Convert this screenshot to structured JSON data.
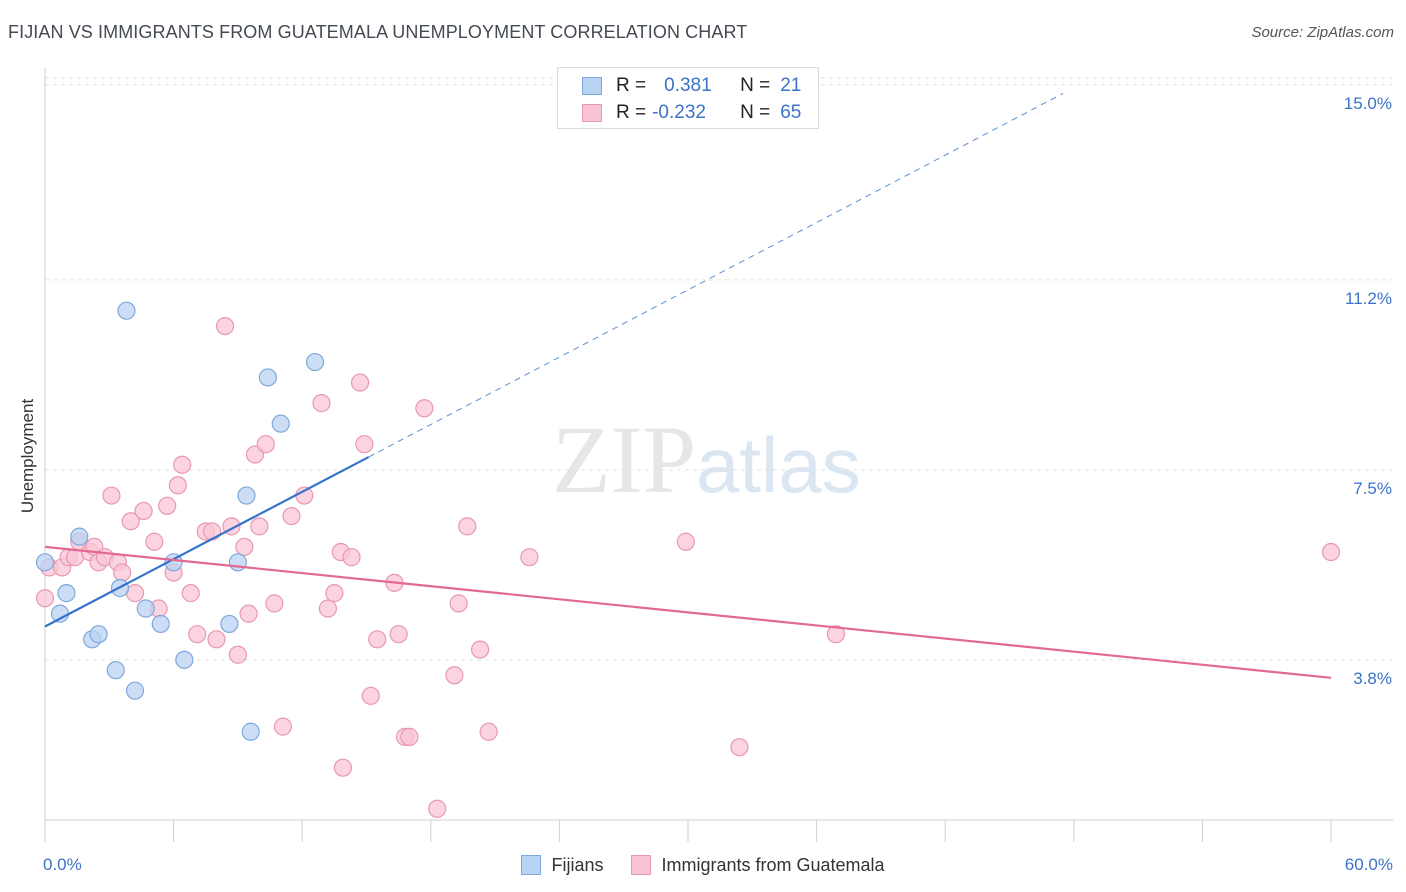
{
  "title": "FIJIAN VS IMMIGRANTS FROM GUATEMALA UNEMPLOYMENT CORRELATION CHART",
  "source": "Source: ZipAtlas.com",
  "watermark": {
    "zip": "ZIP",
    "atlas": "atlas"
  },
  "legend": {
    "rows": [
      {
        "r_label": "R =",
        "r_value": "0.381",
        "n_label": "N =",
        "n_value": "21"
      },
      {
        "r_label": "R =",
        "r_value": "-0.232",
        "n_label": "N =",
        "n_value": "65"
      }
    ]
  },
  "bottom_legend": [
    "Fijians",
    "Immigrants from Guatemala"
  ],
  "colors": {
    "fijians_fill": "#b9d3f3",
    "fijians_stroke": "#7fa8dd",
    "fijians_line": "#3572cc",
    "guatemala_fill": "#f9c5d5",
    "guatemala_stroke": "#e898b2",
    "guatemala_line": "#e26a92",
    "axis_label": "#3b73c8",
    "grid": "#e2e2e2"
  },
  "chart_data": {
    "type": "scatter",
    "title": "FIJIAN VS IMMIGRANTS FROM GUATEMALA UNEMPLOYMENT CORRELATION CHART",
    "xlabel": "",
    "ylabel": "Unemployment",
    "xlim": [
      0,
      60
    ],
    "ylim": [
      0,
      16
    ],
    "x_tick_labels": [
      "0.0%",
      "60.0%"
    ],
    "y_ticks": [
      3.8,
      7.5,
      11.2,
      15.0
    ],
    "y_tick_labels": [
      "3.8%",
      "7.5%",
      "11.2%",
      "15.0%"
    ],
    "grid": "horizontal dashed",
    "legend_position": "top-center",
    "series": [
      {
        "name": "Fijians",
        "r": 0.381,
        "n": 21,
        "trend": {
          "x0": 0,
          "y0": 4.45,
          "x1": 15.1,
          "y1": 7.75,
          "dash_to_x": 47.5
        },
        "points": [
          [
            0.0,
            5.7
          ],
          [
            1.0,
            5.1
          ],
          [
            0.7,
            4.7
          ],
          [
            1.6,
            6.2
          ],
          [
            2.2,
            4.2
          ],
          [
            2.5,
            4.3
          ],
          [
            3.3,
            3.6
          ],
          [
            3.5,
            5.2
          ],
          [
            3.8,
            10.6
          ],
          [
            4.2,
            3.2
          ],
          [
            4.7,
            4.8
          ],
          [
            5.4,
            4.5
          ],
          [
            6.0,
            5.7
          ],
          [
            6.5,
            3.8
          ],
          [
            8.6,
            4.5
          ],
          [
            9.0,
            5.7
          ],
          [
            9.4,
            7.0
          ],
          [
            9.6,
            2.4
          ],
          [
            10.4,
            9.3
          ],
          [
            11.0,
            8.4
          ],
          [
            12.6,
            9.6
          ]
        ]
      },
      {
        "name": "Immigrants from Guatemala",
        "r": -0.232,
        "n": 65,
        "trend": {
          "x0": 0,
          "y0": 6.0,
          "x1": 60,
          "y1": 3.45
        },
        "points": [
          [
            0.2,
            5.6
          ],
          [
            0.8,
            5.6
          ],
          [
            1.1,
            5.8
          ],
          [
            1.4,
            5.8
          ],
          [
            1.6,
            6.1
          ],
          [
            2.1,
            5.9
          ],
          [
            2.3,
            6.0
          ],
          [
            2.5,
            5.7
          ],
          [
            2.8,
            5.8
          ],
          [
            3.1,
            7.0
          ],
          [
            3.4,
            5.7
          ],
          [
            3.6,
            5.5
          ],
          [
            4.0,
            6.5
          ],
          [
            4.2,
            5.1
          ],
          [
            4.6,
            6.7
          ],
          [
            5.1,
            6.1
          ],
          [
            5.3,
            4.8
          ],
          [
            5.7,
            6.8
          ],
          [
            6.0,
            5.5
          ],
          [
            6.2,
            7.2
          ],
          [
            6.4,
            7.6
          ],
          [
            6.8,
            5.1
          ],
          [
            7.1,
            4.3
          ],
          [
            7.5,
            6.3
          ],
          [
            7.8,
            6.3
          ],
          [
            8.0,
            4.2
          ],
          [
            8.4,
            10.3
          ],
          [
            8.7,
            6.4
          ],
          [
            9.0,
            3.9
          ],
          [
            9.3,
            6.0
          ],
          [
            9.5,
            4.7
          ],
          [
            9.8,
            7.8
          ],
          [
            10.0,
            6.4
          ],
          [
            10.3,
            8.0
          ],
          [
            10.7,
            4.9
          ],
          [
            11.1,
            2.5
          ],
          [
            11.5,
            6.6
          ],
          [
            12.1,
            7.0
          ],
          [
            12.9,
            8.8
          ],
          [
            13.2,
            4.8
          ],
          [
            13.5,
            5.1
          ],
          [
            13.8,
            5.9
          ],
          [
            13.9,
            1.7
          ],
          [
            14.3,
            5.8
          ],
          [
            14.7,
            9.2
          ],
          [
            14.9,
            8.0
          ],
          [
            15.2,
            3.1
          ],
          [
            15.5,
            4.2
          ],
          [
            16.3,
            5.3
          ],
          [
            16.5,
            4.3
          ],
          [
            16.8,
            2.3
          ],
          [
            17.0,
            2.3
          ],
          [
            17.7,
            8.7
          ],
          [
            18.3,
            0.9
          ],
          [
            19.1,
            3.5
          ],
          [
            19.3,
            4.9
          ],
          [
            19.7,
            6.4
          ],
          [
            20.3,
            4.0
          ],
          [
            20.7,
            2.4
          ],
          [
            22.6,
            5.8
          ],
          [
            29.9,
            6.1
          ],
          [
            32.4,
            2.1
          ],
          [
            36.9,
            4.3
          ],
          [
            60.0,
            5.9
          ],
          [
            0.0,
            5.0
          ]
        ]
      }
    ]
  }
}
